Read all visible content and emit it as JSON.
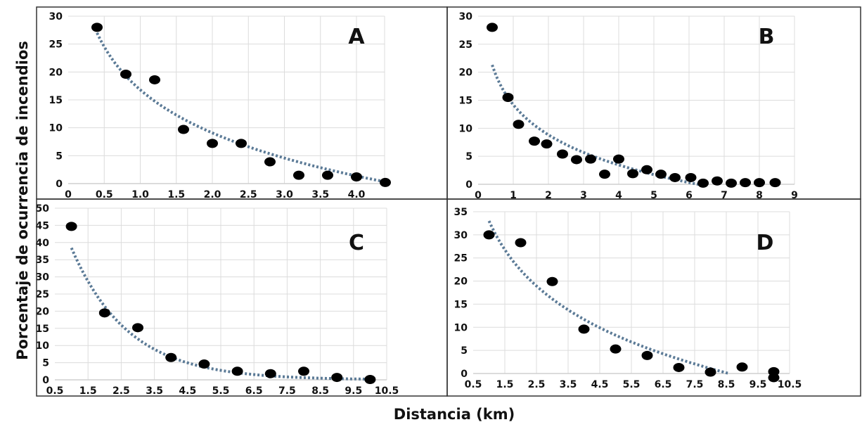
{
  "figure": {
    "ylabel": "Porcentaje de ocurrencia de incendios",
    "xlabel": "Distancia (km)"
  },
  "chart_data": [
    {
      "type": "scatter",
      "panel": "A",
      "xlim": [
        0,
        4.4
      ],
      "ylim": [
        0,
        30
      ],
      "xticks": [
        "0",
        "0.5",
        "1.0",
        "1.5",
        "2.0",
        "2.5",
        "3.0",
        "3.5",
        "4.0"
      ],
      "xtick_values": [
        0,
        0.5,
        1,
        1.5,
        2,
        2.5,
        3,
        3.5,
        4
      ],
      "yticks": [
        "0",
        "5",
        "10",
        "15",
        "20",
        "25",
        "30"
      ],
      "ytick_values": [
        0,
        5,
        10,
        15,
        20,
        25,
        30
      ],
      "grid": true,
      "points": [
        [
          0.4,
          28
        ],
        [
          0.8,
          19.6
        ],
        [
          1.2,
          18.6
        ],
        [
          1.6,
          9.7
        ],
        [
          2.0,
          7.2
        ],
        [
          2.4,
          7.2
        ],
        [
          2.8,
          3.9
        ],
        [
          3.2,
          1.5
        ],
        [
          3.6,
          1.5
        ],
        [
          4.0,
          1.2
        ],
        [
          4.4,
          0.2
        ]
      ],
      "trendline": {
        "type": "logarithmic",
        "a": 16.8,
        "b": 11.13,
        "x_range": [
          0.4,
          4.4
        ]
      }
    },
    {
      "type": "scatter",
      "panel": "B",
      "xlim": [
        0,
        9
      ],
      "ylim": [
        0,
        30
      ],
      "xticks": [
        "0",
        "1",
        "2",
        "3",
        "4",
        "5",
        "6",
        "7",
        "8",
        "9"
      ],
      "xtick_values": [
        0,
        1,
        2,
        3,
        4,
        5,
        6,
        7,
        8,
        9
      ],
      "yticks": [
        "0",
        "5",
        "10",
        "15",
        "20",
        "25",
        "30"
      ],
      "ytick_values": [
        0,
        5,
        10,
        15,
        20,
        25,
        30
      ],
      "grid": true,
      "points": [
        [
          0.4,
          28
        ],
        [
          0.85,
          15.5
        ],
        [
          1.15,
          10.7
        ],
        [
          1.6,
          7.7
        ],
        [
          1.95,
          7.2
        ],
        [
          2.4,
          5.4
        ],
        [
          2.8,
          4.4
        ],
        [
          3.2,
          4.5
        ],
        [
          3.6,
          1.8
        ],
        [
          4.0,
          4.5
        ],
        [
          4.4,
          1.9
        ],
        [
          4.8,
          2.6
        ],
        [
          5.2,
          1.8
        ],
        [
          5.6,
          1.2
        ],
        [
          6.05,
          1.2
        ],
        [
          6.4,
          0.2
        ],
        [
          6.8,
          0.6
        ],
        [
          7.2,
          0.2
        ],
        [
          7.6,
          0.3
        ],
        [
          8.0,
          0.3
        ],
        [
          8.45,
          0.3
        ]
      ],
      "trendline": {
        "type": "logarithmic",
        "a": 14.2,
        "b": 7.75,
        "x_range": [
          0.4,
          6.3
        ]
      }
    },
    {
      "type": "scatter",
      "panel": "C",
      "xlim": [
        0.5,
        10.5
      ],
      "ylim": [
        0,
        50
      ],
      "xticks": [
        "0.5",
        "1.5",
        "2.5",
        "3.5",
        "4.5",
        "5.5",
        "6.5",
        "7.5",
        "8.5",
        "9.5",
        "10.5"
      ],
      "xtick_values": [
        0.5,
        1.5,
        2.5,
        3.5,
        4.5,
        5.5,
        6.5,
        7.5,
        8.5,
        9.5,
        10.5
      ],
      "yticks": [
        "0",
        "5",
        "10",
        "15",
        "20",
        "25",
        "30",
        "35",
        "40",
        "45",
        "50"
      ],
      "ytick_values": [
        0,
        5,
        10,
        15,
        20,
        25,
        30,
        35,
        40,
        45,
        50
      ],
      "grid": true,
      "points": [
        [
          1,
          44.7
        ],
        [
          2,
          19.5
        ],
        [
          3,
          15.2
        ],
        [
          4,
          6.5
        ],
        [
          5,
          4.6
        ],
        [
          6,
          2.5
        ],
        [
          7,
          1.8
        ],
        [
          8,
          2.5
        ],
        [
          9,
          0.7
        ],
        [
          10,
          0.1
        ]
      ],
      "trendline": {
        "type": "exponential",
        "a": 69,
        "b": 0.585,
        "x_range": [
          1,
          10
        ]
      }
    },
    {
      "type": "scatter",
      "panel": "D",
      "xlim": [
        0.5,
        10.5
      ],
      "ylim": [
        0,
        35
      ],
      "xticks": [
        "0.5",
        "1.5",
        "2.5",
        "3.5",
        "4.5",
        "5.5",
        "6.5",
        "7.5",
        "8.5",
        "9.5",
        "10.5"
      ],
      "xtick_values": [
        0.5,
        1.5,
        2.5,
        3.5,
        4.5,
        5.5,
        6.5,
        7.5,
        8.5,
        9.5,
        10.5
      ],
      "yticks": [
        "0",
        "5",
        "10",
        "15",
        "20",
        "25",
        "30",
        "35"
      ],
      "ytick_values": [
        0,
        5,
        10,
        15,
        20,
        25,
        30,
        35
      ],
      "grid": true,
      "points": [
        [
          1,
          30
        ],
        [
          2,
          28.3
        ],
        [
          3,
          19.9
        ],
        [
          4,
          9.6
        ],
        [
          5,
          5.3
        ],
        [
          6,
          3.9
        ],
        [
          7,
          1.3
        ],
        [
          8,
          0.3
        ],
        [
          9,
          1.4
        ],
        [
          10,
          0.4
        ],
        [
          10,
          -0.9
        ]
      ],
      "trendline": {
        "type": "logarithmic",
        "a": 33,
        "b": 15.35,
        "x_range": [
          1,
          8.6
        ]
      }
    }
  ],
  "colors": {
    "points": "#000000",
    "trendline": "#5b7a96",
    "grid": "#dcdcdc",
    "frame": "#333333"
  }
}
